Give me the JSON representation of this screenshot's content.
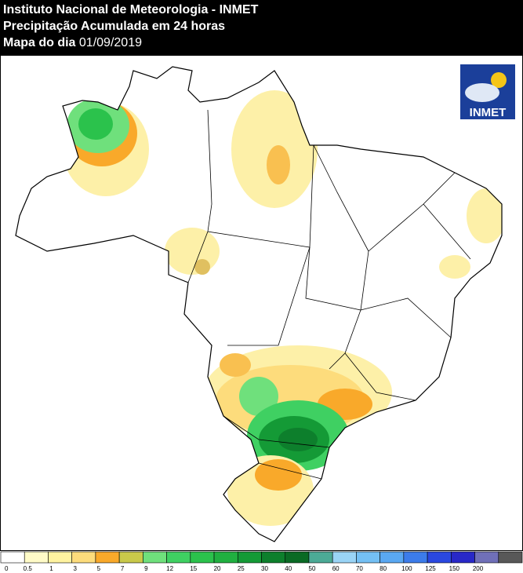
{
  "header": {
    "line1": "Instituto Nacional de Meteorologia - INMET",
    "line2": "Precipitação Acumulada em 24 horas",
    "line3_label": "Mapa do dia",
    "date": "01/09/2019"
  },
  "logo": {
    "text": "INMET"
  },
  "legend": {
    "levels": [
      0,
      0.5,
      1,
      3,
      5,
      7,
      9,
      12,
      15,
      20,
      25,
      30,
      40,
      50,
      60,
      70,
      80,
      100,
      125,
      150,
      200
    ],
    "colors": [
      "#ffffff",
      "#fffbc8",
      "#fff3a0",
      "#fddc7c",
      "#f9a92a",
      "#c9c94a",
      "#6fe07c",
      "#3fd062",
      "#2bc24c",
      "#20b040",
      "#149a36",
      "#0d7f2c",
      "#0a6a24",
      "#4caa96",
      "#9ad4f6",
      "#74c0f4",
      "#5aa8f2",
      "#3c7cea",
      "#2a48e0",
      "#2828c8",
      "#7070b8",
      "#585858"
    ]
  }
}
